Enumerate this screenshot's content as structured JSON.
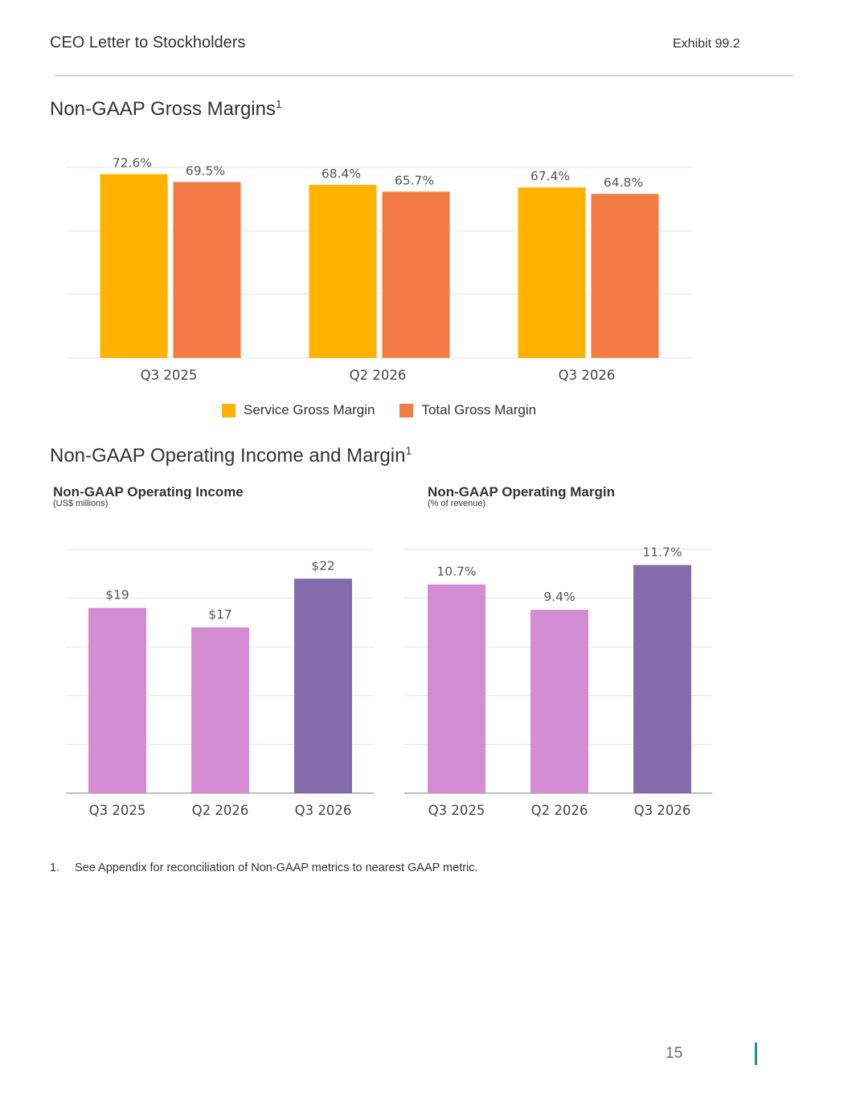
{
  "header": {
    "title": "CEO Letter to Stockholders",
    "exhibit": "Exhibit 99.2"
  },
  "sections": {
    "gross": {
      "title": "Non-GAAP Gross Margins",
      "sup": "1"
    },
    "operating": {
      "title": "Non-GAAP Operating Income and Margin",
      "sup": "1"
    }
  },
  "subcharts": {
    "income": {
      "title": "Non-GAAP Operating Income",
      "note": "(US$ millions)"
    },
    "margin": {
      "title": "Non-GAAP Operating Margin",
      "note": "(% of revenue)"
    }
  },
  "chart_data": [
    {
      "id": "gross",
      "type": "bar",
      "title": "Non-GAAP Gross Margins",
      "categories": [
        "Q3 2025",
        "Q2 2026",
        "Q3 2026"
      ],
      "series": [
        {
          "name": "Service Gross Margin",
          "values": [
            72.6,
            68.4,
            67.4
          ],
          "labels": [
            "72.6%",
            "68.4%",
            "67.4%"
          ],
          "color": "#FFB300"
        },
        {
          "name": "Total Gross Margin",
          "values": [
            69.5,
            65.7,
            64.8
          ],
          "labels": [
            "69.5%",
            "65.7%",
            "64.8%"
          ],
          "color": "#F47B43"
        }
      ],
      "ylim": [
        0,
        75
      ],
      "grid": true,
      "legend": "bottom-center"
    },
    {
      "id": "income",
      "type": "bar",
      "title": "Non-GAAP Operating Income",
      "subtitle": "(US$ millions)",
      "categories": [
        "Q3 2025",
        "Q2 2026",
        "Q3 2026"
      ],
      "values": [
        19,
        17,
        22
      ],
      "labels": [
        "$19",
        "$17",
        "$22"
      ],
      "colors": [
        "#D48CD2",
        "#D48CD2",
        "#836BAE"
      ],
      "ylim": [
        0,
        25
      ],
      "grid": true
    },
    {
      "id": "margin",
      "type": "bar",
      "title": "Non-GAAP Operating Margin",
      "subtitle": "(% of revenue)",
      "categories": [
        "Q3 2025",
        "Q2 2026",
        "Q3 2026"
      ],
      "values": [
        10.7,
        9.4,
        11.7
      ],
      "labels": [
        "10.7%",
        "9.4%",
        "11.7%"
      ],
      "colors": [
        "#D48CD2",
        "#D48CD2",
        "#836BAE"
      ],
      "ylim": [
        0,
        12.5
      ],
      "grid": true
    }
  ],
  "footnote": {
    "number": "1.",
    "text": "See Appendix for reconciliation of Non-GAAP metrics to nearest GAAP metric."
  },
  "page": {
    "number": "15"
  }
}
